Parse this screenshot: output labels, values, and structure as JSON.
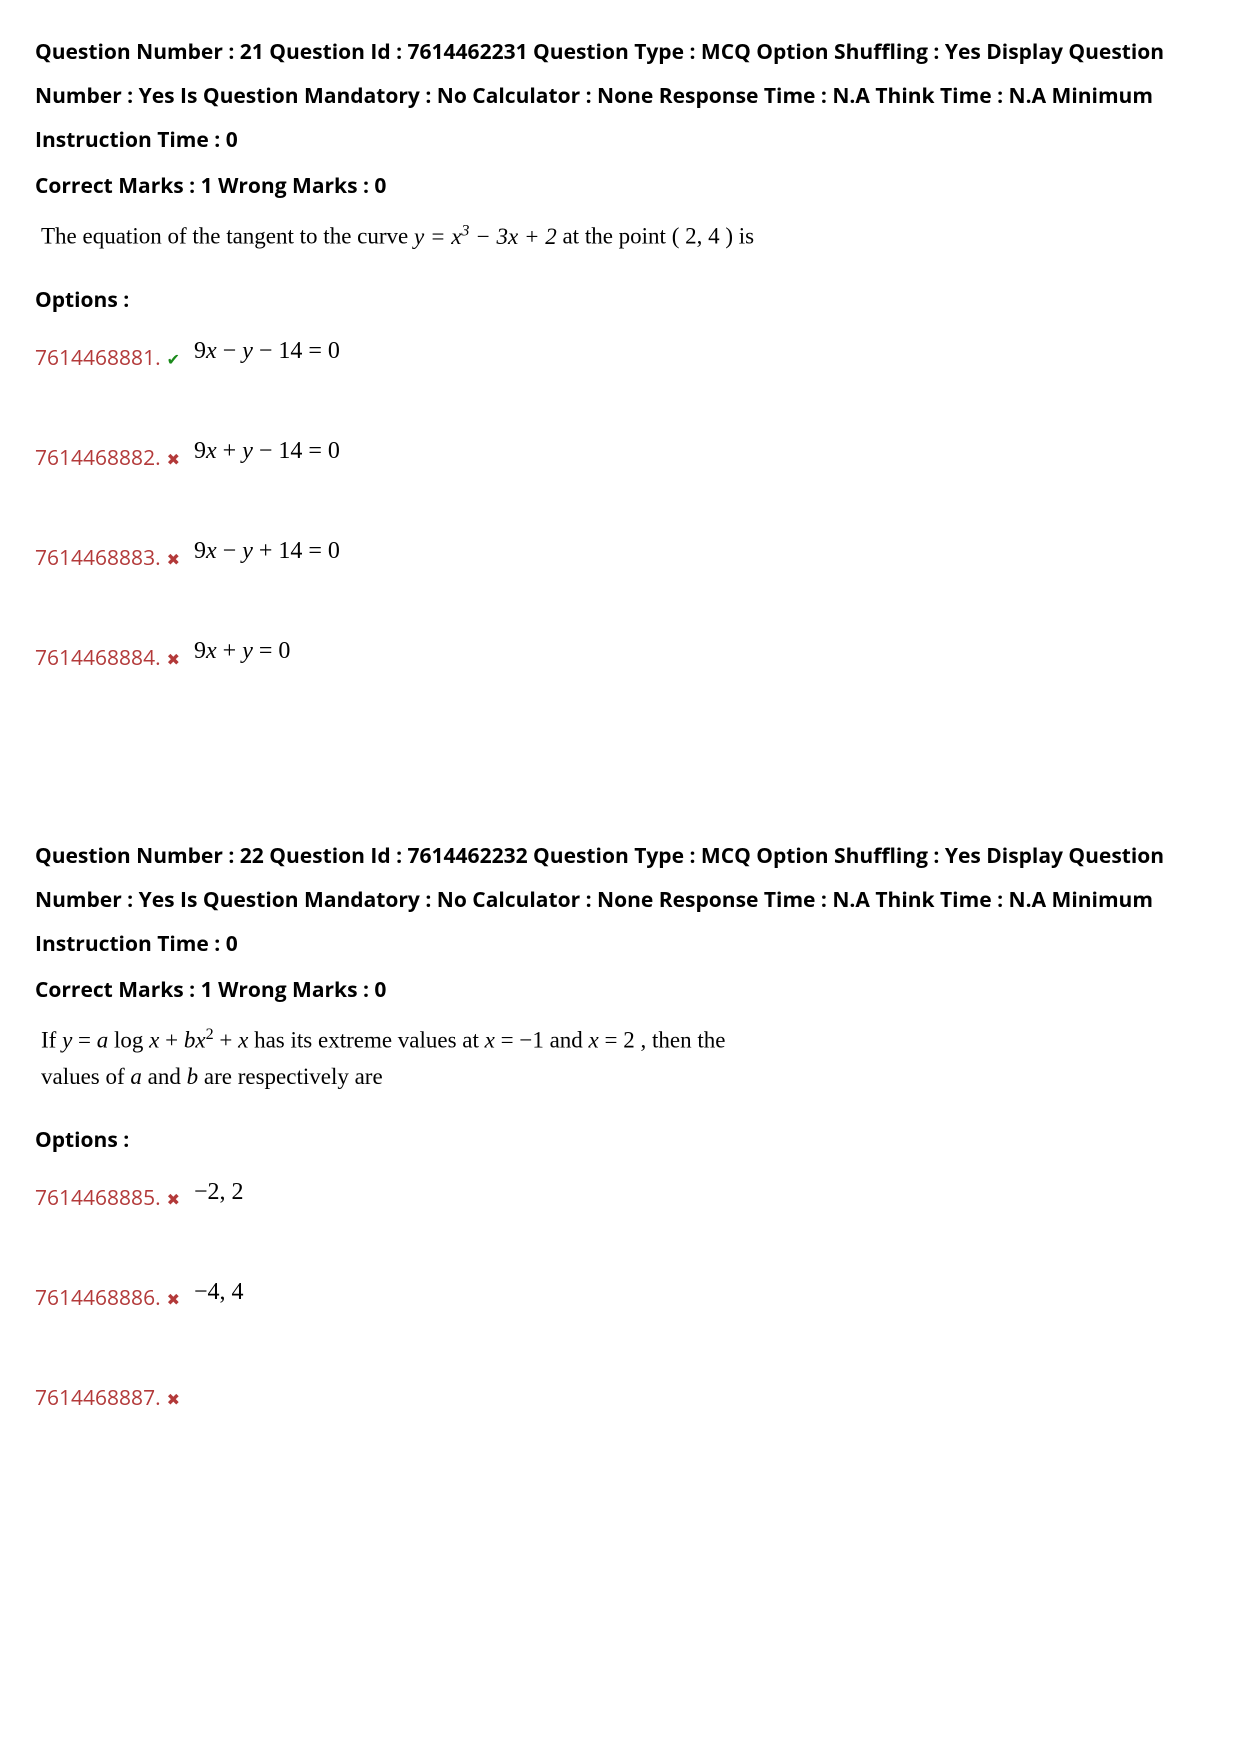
{
  "q1": {
    "meta_text": "Question Number : 21 Question Id : 7614462231 Question Type : MCQ Option Shuffling : Yes Display Question Number : Yes Is Question Mandatory : No Calculator : None Response Time : N.A Think Time : N.A Minimum Instruction Time : 0",
    "marks_text": "Correct Marks : 1 Wrong Marks : 0",
    "question_prefix": "The equation of the tangent to the curve  ",
    "question_eq_html": "y = x<span class=\"sup\">3</span> − 3x + 2",
    "question_mid": "  at the point  ",
    "question_point": "( 2, 4 )",
    "question_suffix": "  is",
    "options_label": "Options :",
    "options": [
      {
        "id": "7614468881.",
        "correct": true,
        "math": "9<span class=\"ital\">x</span> − <span class=\"ital\">y</span> − 14 = 0"
      },
      {
        "id": "7614468882.",
        "correct": false,
        "math": "9<span class=\"ital\">x</span> + <span class=\"ital\">y</span> − 14 = 0"
      },
      {
        "id": "7614468883.",
        "correct": false,
        "math": "9<span class=\"ital\">x</span> − <span class=\"ital\">y</span> + 14 = 0"
      },
      {
        "id": "7614468884.",
        "correct": false,
        "math": "9<span class=\"ital\">x</span> + <span class=\"ital\">y</span> = 0"
      }
    ]
  },
  "q2": {
    "meta_text": "Question Number : 22 Question Id : 7614462232 Question Type : MCQ Option Shuffling : Yes Display Question Number : Yes Is Question Mandatory : No Calculator : None Response Time : N.A Think Time : N.A Minimum Instruction Time : 0",
    "marks_text": "Correct Marks : 1 Wrong Marks : 0",
    "question_line1_html": "If  <span class=\"ital\">y</span> = <span class=\"ital\">a</span> log <span class=\"ital\">x</span> + <span class=\"ital\">bx</span><span class=\"sup\">2</span> + <span class=\"ital\">x</span>  has  its  extreme  values  at   <span class=\"ital\">x</span> = −1 and  <span class=\"ital\">x</span> = 2 , then  the",
    "question_line2_html": "values of  <span class=\"ital\">a</span>  and  <span class=\"ital\">b</span>  are respectively are",
    "options_label": "Options :",
    "options": [
      {
        "id": "7614468885.",
        "correct": false,
        "math": "−2, 2"
      },
      {
        "id": "7614468886.",
        "correct": false,
        "math": "−4, 4"
      },
      {
        "id": "7614468887.",
        "correct": false,
        "math": ""
      }
    ]
  },
  "icons": {
    "check": "✔",
    "cross": "✖"
  },
  "colors": {
    "option_id": "#b33a3a",
    "correct": "#1a8a1a",
    "wrong": "#b33a3a",
    "text": "#000000",
    "bg": "#ffffff"
  }
}
